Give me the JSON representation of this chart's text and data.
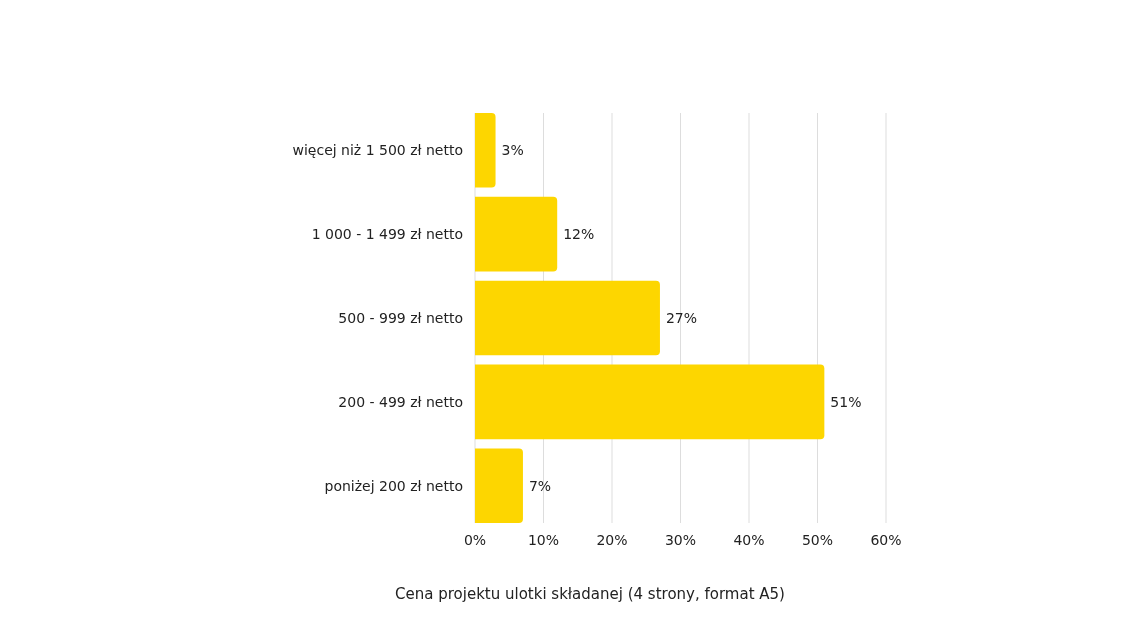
{
  "chart_data": {
    "type": "bar",
    "orientation": "horizontal",
    "xlabel": "Cena projektu ulotki składanej (4 strony, format A5)",
    "categories": [
      "więcej niż 1 500 zł netto",
      "1 000 - 1 499 zł netto",
      "500 - 999 zł netto",
      "200 - 499 zł netto",
      "poniżej 200 zł netto"
    ],
    "values": [
      3,
      12,
      27,
      51,
      7
    ],
    "value_labels": [
      "3%",
      "12%",
      "27%",
      "51%",
      "7%"
    ],
    "color": "#fdd600",
    "xlim": [
      0,
      60
    ],
    "xticks": [
      {
        "value": 0,
        "label": "0%"
      },
      {
        "value": 10,
        "label": "10%"
      },
      {
        "value": 20,
        "label": "20%"
      },
      {
        "value": 30,
        "label": "30%"
      },
      {
        "value": 40,
        "label": "40%"
      },
      {
        "value": 50,
        "label": "50%"
      },
      {
        "value": 60,
        "label": "60%"
      }
    ],
    "grid": "x"
  }
}
